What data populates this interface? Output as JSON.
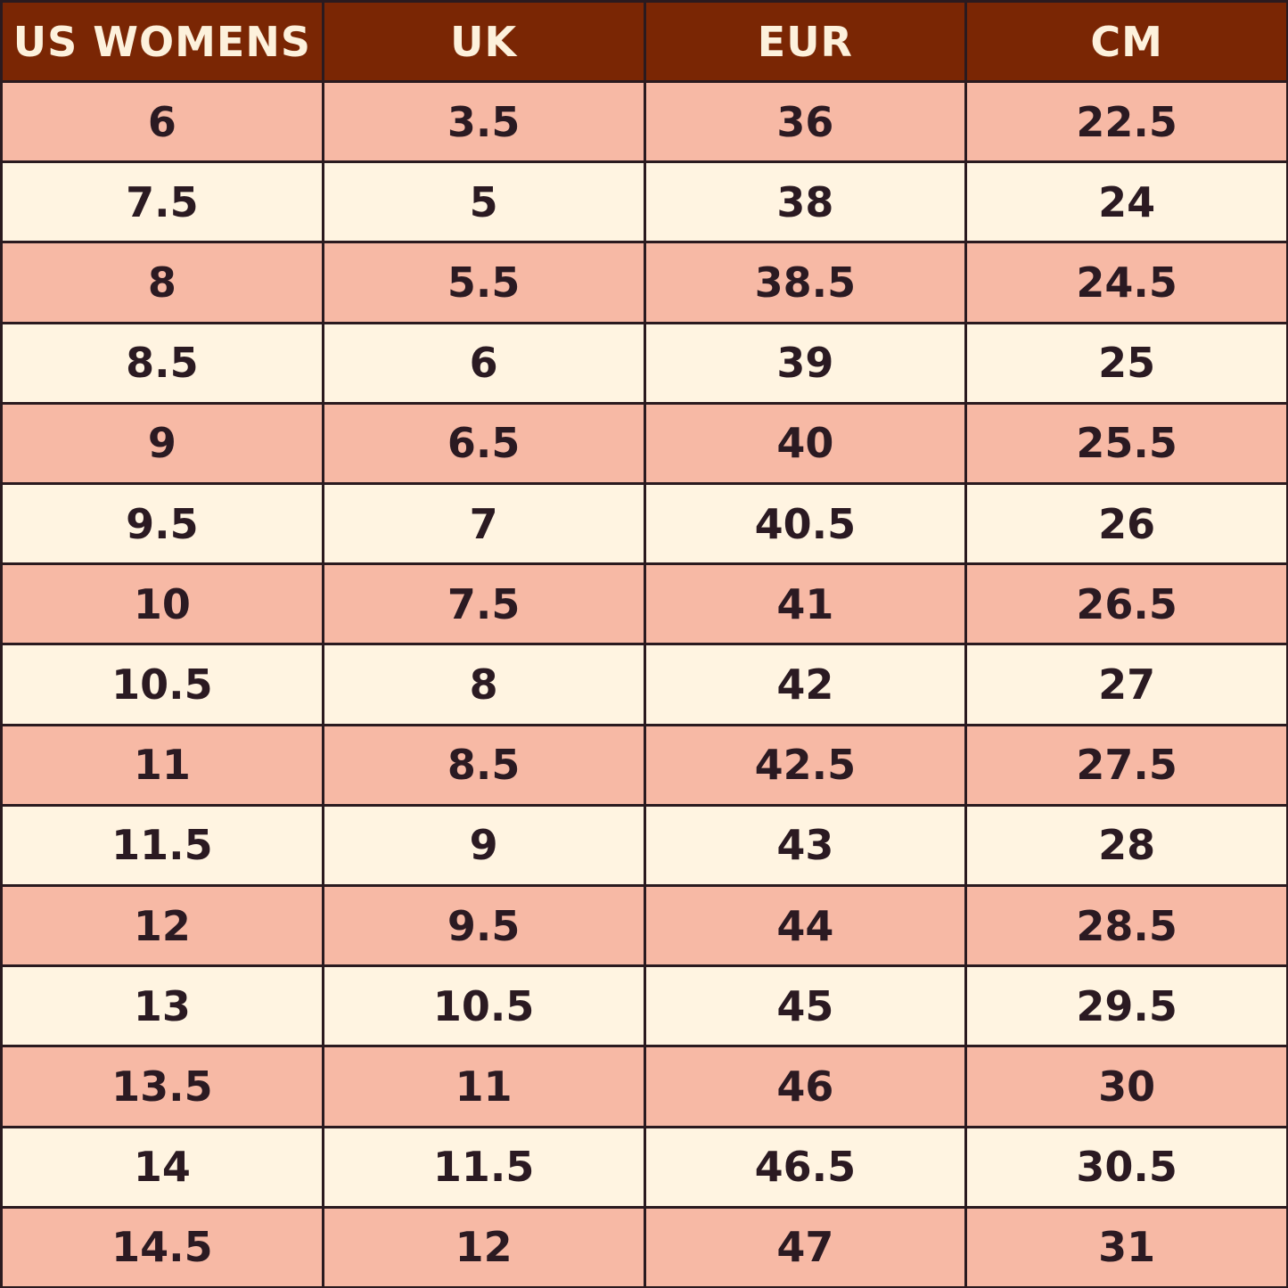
{
  "table": {
    "header": [
      "US WOMENS",
      "UK",
      "EUR",
      "CM"
    ],
    "rows": [
      [
        6,
        3.5,
        36,
        22.5
      ],
      [
        7.5,
        5,
        38,
        24
      ],
      [
        8,
        5.5,
        38.5,
        24.5
      ],
      [
        8.5,
        6,
        39,
        25
      ],
      [
        9,
        6.5,
        40,
        25.5
      ],
      [
        9.5,
        7,
        40.5,
        26
      ],
      [
        10,
        7.5,
        41,
        26.5
      ],
      [
        10.5,
        8,
        42,
        27
      ],
      [
        11,
        8.5,
        42.5,
        27.5
      ],
      [
        11.5,
        9,
        43,
        28
      ],
      [
        12,
        9.5,
        44,
        28.5
      ],
      [
        13,
        10.5,
        45,
        29.5
      ],
      [
        13.5,
        11,
        46,
        30
      ],
      [
        14,
        11.5,
        46.5,
        30.5
      ],
      [
        14.5,
        12,
        47,
        31
      ]
    ]
  }
}
